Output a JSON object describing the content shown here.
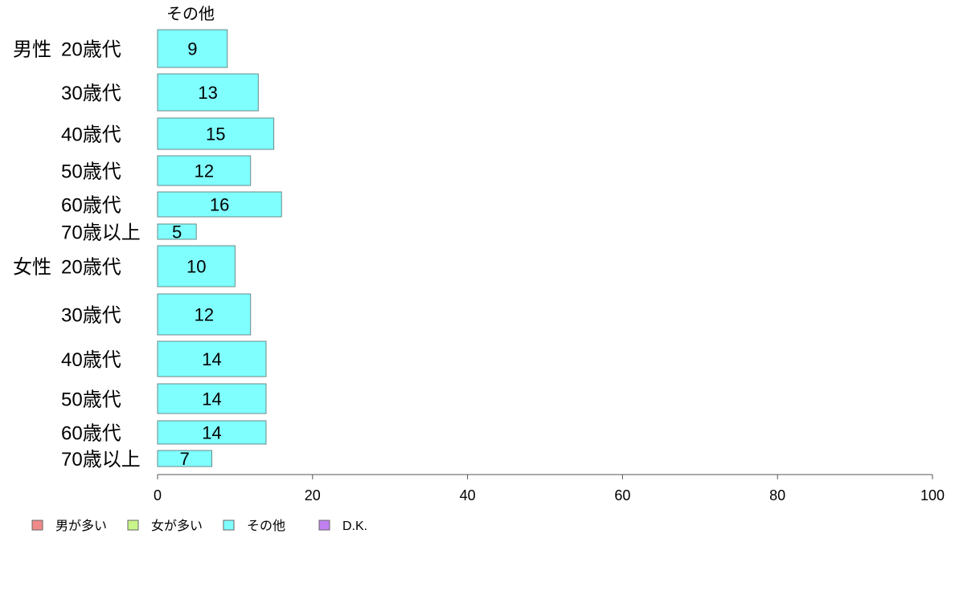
{
  "chart_data": {
    "type": "bar",
    "orientation": "horizontal",
    "stacked": true,
    "groups": [
      {
        "name": "男性",
        "categories": [
          "20歳代",
          "30歳代",
          "40歳代",
          "50歳代",
          "60歳代",
          "70歳以上"
        ]
      },
      {
        "name": "女性",
        "categories": [
          "20歳代",
          "30歳代",
          "40歳代",
          "50歳代",
          "60歳代",
          "70歳以上"
        ]
      }
    ],
    "series": [
      {
        "name": "男が多い",
        "color": "#f08a8a",
        "values": []
      },
      {
        "name": "女が多い",
        "color": "#c8f58a",
        "values": []
      },
      {
        "name": "その他",
        "color": "#80ffff",
        "values": [
          9,
          13,
          15,
          12,
          16,
          5,
          10,
          12,
          14,
          14,
          14,
          7
        ]
      },
      {
        "name": "D.K.",
        "color": "#c080f0",
        "values": []
      }
    ],
    "shown_series_label": "その他",
    "data_labels": [
      "9",
      "13",
      "15",
      "12",
      "16",
      "5",
      "10",
      "12",
      "14",
      "14",
      "14",
      "7"
    ],
    "xlim": [
      0,
      100
    ],
    "xticks": [
      "0",
      "20",
      "40",
      "60",
      "80",
      "100"
    ],
    "legend_position": "bottom-left",
    "grid": false
  }
}
